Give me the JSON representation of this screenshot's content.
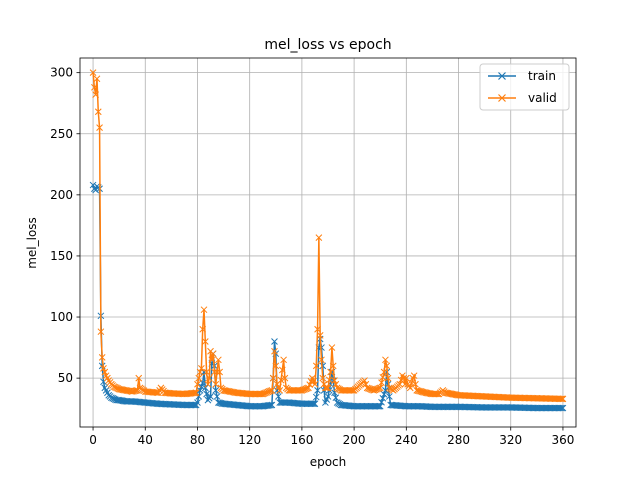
{
  "chart_data": {
    "type": "line",
    "title": "mel_loss vs epoch",
    "xlabel": "epoch",
    "ylabel": "mel_loss",
    "xlim": [
      -10,
      370
    ],
    "ylim": [
      10,
      312
    ],
    "xticks": [
      0,
      40,
      80,
      120,
      160,
      200,
      240,
      280,
      320,
      360
    ],
    "yticks": [
      50,
      100,
      150,
      200,
      250,
      300
    ],
    "grid": true,
    "legend": "top-right",
    "marker": "x",
    "series": [
      {
        "name": "train",
        "color": "#1f77b4",
        "anchors": [
          [
            0,
            208
          ],
          [
            1,
            205
          ],
          [
            2,
            204
          ],
          [
            3,
            207
          ],
          [
            4,
            206
          ],
          [
            5,
            205
          ],
          [
            6,
            101
          ],
          [
            7,
            60
          ],
          [
            8,
            47
          ],
          [
            9,
            42
          ],
          [
            10,
            40
          ],
          [
            11,
            38
          ],
          [
            12,
            36
          ],
          [
            14,
            34
          ],
          [
            16,
            33
          ],
          [
            18,
            32
          ],
          [
            20,
            32
          ],
          [
            25,
            31
          ],
          [
            30,
            31
          ],
          [
            40,
            30
          ],
          [
            50,
            29
          ],
          [
            60,
            28.5
          ],
          [
            70,
            28
          ],
          [
            79,
            28
          ],
          [
            80,
            30
          ],
          [
            82,
            40
          ],
          [
            84,
            46
          ],
          [
            85,
            55
          ],
          [
            86,
            42
          ],
          [
            88,
            32
          ],
          [
            90,
            35
          ],
          [
            91,
            62
          ],
          [
            92,
            70
          ],
          [
            93,
            60
          ],
          [
            94,
            40
          ],
          [
            96,
            30
          ],
          [
            100,
            29
          ],
          [
            110,
            28
          ],
          [
            120,
            27
          ],
          [
            130,
            27
          ],
          [
            137,
            28
          ],
          [
            138,
            50
          ],
          [
            139,
            80
          ],
          [
            140,
            70
          ],
          [
            141,
            40
          ],
          [
            143,
            30
          ],
          [
            150,
            30
          ],
          [
            160,
            29
          ],
          [
            170,
            29
          ],
          [
            172,
            40
          ],
          [
            173,
            75
          ],
          [
            174,
            82
          ],
          [
            175,
            75
          ],
          [
            176,
            60
          ],
          [
            177,
            40
          ],
          [
            178,
            30
          ],
          [
            180,
            35
          ],
          [
            182,
            45
          ],
          [
            183,
            55
          ],
          [
            184,
            48
          ],
          [
            185,
            38
          ],
          [
            187,
            30
          ],
          [
            190,
            28
          ],
          [
            200,
            27
          ],
          [
            210,
            27
          ],
          [
            220,
            27
          ],
          [
            224,
            40
          ],
          [
            225,
            55
          ],
          [
            226,
            45
          ],
          [
            227,
            35
          ],
          [
            228,
            28
          ],
          [
            240,
            27
          ],
          [
            250,
            27
          ],
          [
            260,
            26.5
          ],
          [
            280,
            26.5
          ],
          [
            300,
            26
          ],
          [
            320,
            26
          ],
          [
            340,
            25.5
          ],
          [
            360,
            25.5
          ]
        ]
      },
      {
        "name": "valid",
        "color": "#ff7f0e",
        "anchors": [
          [
            0,
            300
          ],
          [
            1,
            288
          ],
          [
            2,
            282
          ],
          [
            3,
            295
          ],
          [
            4,
            268
          ],
          [
            5,
            255
          ],
          [
            6,
            88
          ],
          [
            7,
            67
          ],
          [
            8,
            58
          ],
          [
            9,
            55
          ],
          [
            10,
            52
          ],
          [
            12,
            48
          ],
          [
            14,
            45
          ],
          [
            16,
            43
          ],
          [
            18,
            42
          ],
          [
            20,
            41
          ],
          [
            25,
            40
          ],
          [
            30,
            39
          ],
          [
            34,
            40
          ],
          [
            35,
            50
          ],
          [
            36,
            42
          ],
          [
            40,
            39
          ],
          [
            50,
            38
          ],
          [
            52,
            42
          ],
          [
            55,
            38
          ],
          [
            60,
            37.5
          ],
          [
            70,
            37
          ],
          [
            79,
            38
          ],
          [
            80,
            45
          ],
          [
            81,
            50
          ],
          [
            82,
            55
          ],
          [
            83,
            58
          ],
          [
            84,
            90
          ],
          [
            85,
            106
          ],
          [
            86,
            80
          ],
          [
            87,
            55
          ],
          [
            88,
            45
          ],
          [
            89,
            50
          ],
          [
            90,
            72
          ],
          [
            91,
            65
          ],
          [
            92,
            70
          ],
          [
            93,
            55
          ],
          [
            94,
            45
          ],
          [
            96,
            65
          ],
          [
            97,
            55
          ],
          [
            98,
            42
          ],
          [
            100,
            40
          ],
          [
            110,
            38
          ],
          [
            120,
            37
          ],
          [
            130,
            37
          ],
          [
            137,
            40
          ],
          [
            138,
            50
          ],
          [
            139,
            72
          ],
          [
            140,
            60
          ],
          [
            141,
            45
          ],
          [
            143,
            40
          ],
          [
            146,
            65
          ],
          [
            147,
            50
          ],
          [
            148,
            42
          ],
          [
            150,
            40
          ],
          [
            160,
            40
          ],
          [
            165,
            42
          ],
          [
            168,
            50
          ],
          [
            170,
            45
          ],
          [
            171,
            60
          ],
          [
            172,
            90
          ],
          [
            173,
            165
          ],
          [
            174,
            85
          ],
          [
            175,
            65
          ],
          [
            176,
            50
          ],
          [
            177,
            45
          ],
          [
            178,
            42
          ],
          [
            180,
            42
          ],
          [
            182,
            55
          ],
          [
            183,
            75
          ],
          [
            184,
            60
          ],
          [
            185,
            48
          ],
          [
            187,
            42
          ],
          [
            190,
            40
          ],
          [
            200,
            40
          ],
          [
            205,
            45
          ],
          [
            208,
            48
          ],
          [
            210,
            42
          ],
          [
            215,
            40
          ],
          [
            220,
            42
          ],
          [
            223,
            55
          ],
          [
            224,
            65
          ],
          [
            225,
            60
          ],
          [
            226,
            50
          ],
          [
            227,
            42
          ],
          [
            230,
            40
          ],
          [
            235,
            45
          ],
          [
            237,
            52
          ],
          [
            238,
            50
          ],
          [
            239,
            45
          ],
          [
            240,
            50
          ],
          [
            241,
            45
          ],
          [
            243,
            42
          ],
          [
            245,
            50
          ],
          [
            246,
            52
          ],
          [
            247,
            45
          ],
          [
            248,
            40
          ],
          [
            255,
            38
          ],
          [
            260,
            37
          ],
          [
            265,
            37
          ],
          [
            268,
            40
          ],
          [
            270,
            38
          ],
          [
            280,
            36
          ],
          [
            300,
            35
          ],
          [
            320,
            34
          ],
          [
            340,
            33.5
          ],
          [
            360,
            33
          ]
        ]
      }
    ]
  }
}
